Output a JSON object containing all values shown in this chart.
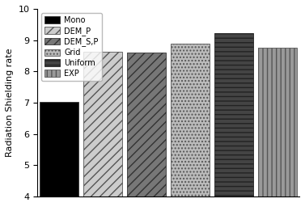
{
  "series": [
    {
      "label": "Mono",
      "value": 7.03,
      "facecolor": "#000000",
      "hatch": "",
      "edgecolor": "#333333"
    },
    {
      "label": "DEM_P",
      "value": 8.62,
      "facecolor": "#cccccc",
      "hatch": "///",
      "edgecolor": "#555555"
    },
    {
      "label": "DEM_S,P",
      "value": 8.6,
      "facecolor": "#777777",
      "hatch": "///",
      "edgecolor": "#333333"
    },
    {
      "label": "Grid",
      "value": 8.88,
      "facecolor": "#bbbbbb",
      "hatch": "....",
      "edgecolor": "#555555"
    },
    {
      "label": "Uniform",
      "value": 9.22,
      "facecolor": "#444444",
      "hatch": "---",
      "edgecolor": "#222222"
    },
    {
      "label": "EXP",
      "value": 8.77,
      "facecolor": "#999999",
      "hatch": "|||",
      "edgecolor": "#555555"
    }
  ],
  "ylabel": "Radiation Shielding rate",
  "ylim": [
    4,
    10
  ],
  "yticks": [
    4,
    5,
    6,
    7,
    8,
    9,
    10
  ],
  "bar_width": 0.9,
  "legend_loc": "upper left",
  "background_color": "#ffffff",
  "legend_fontsize": 7,
  "ylabel_fontsize": 8,
  "tick_fontsize": 8
}
